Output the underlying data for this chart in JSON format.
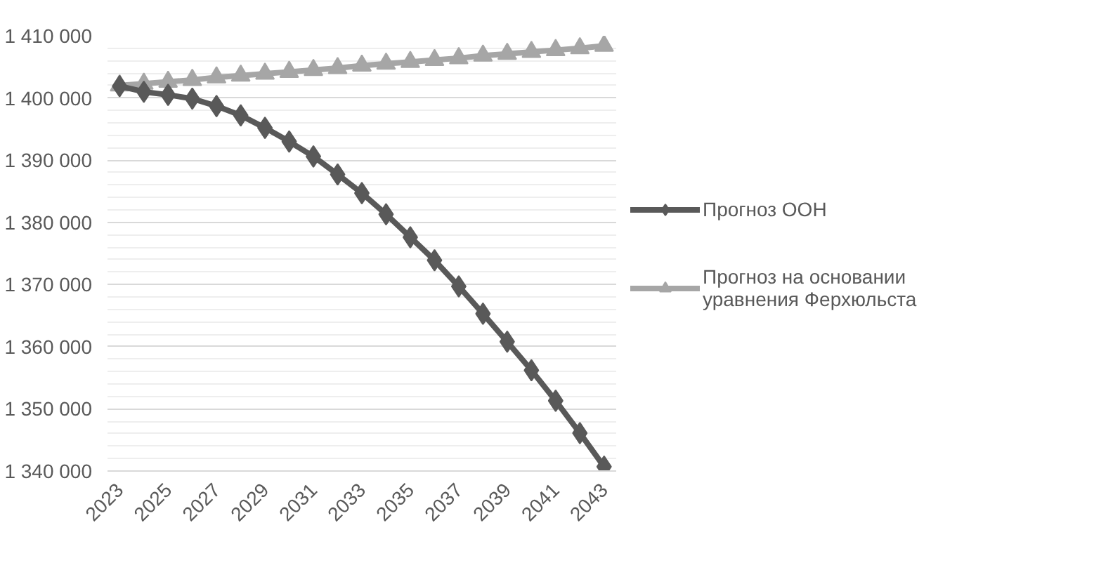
{
  "chart_data": {
    "type": "line",
    "categories": [
      "2023",
      null,
      "2025",
      null,
      "2027",
      null,
      "2029",
      null,
      "2031",
      null,
      "2033",
      null,
      "2035",
      null,
      "2037",
      null,
      "2039",
      null,
      "2041",
      null,
      "2043"
    ],
    "series": [
      {
        "name": "Прогноз ООН",
        "color": "#595959",
        "marker": "diamond",
        "values": [
          1401900,
          1401000,
          1400500,
          1399900,
          1398700,
          1397200,
          1395200,
          1393000,
          1390600,
          1387700,
          1384700,
          1381300,
          1377600,
          1373900,
          1369700,
          1365300,
          1360800,
          1356200,
          1351300,
          1346100,
          1340700
        ]
      },
      {
        "name": "Прогноз на основании уравнения Ферхюльста",
        "color": "#a6a6a6",
        "marker": "triangle",
        "values": [
          1402000,
          1402300,
          1402600,
          1402900,
          1403300,
          1403600,
          1403900,
          1404200,
          1404500,
          1404800,
          1405200,
          1405500,
          1405800,
          1406100,
          1406400,
          1406800,
          1407100,
          1407400,
          1407700,
          1408000,
          1408400
        ]
      }
    ],
    "ylim": [
      1340000,
      1410000
    ],
    "yticks": [
      {
        "value": 1340000,
        "label": "1 340 000"
      },
      {
        "value": 1350000,
        "label": "1 350 000"
      },
      {
        "value": 1360000,
        "label": "1 360 000"
      },
      {
        "value": 1370000,
        "label": "1 370 000"
      },
      {
        "value": 1380000,
        "label": "1 380 000"
      },
      {
        "value": 1390000,
        "label": "1 390 000"
      },
      {
        "value": 1400000,
        "label": "1 400 000"
      },
      {
        "value": 1410000,
        "label": "1 410 000"
      }
    ],
    "grid": "y",
    "legend": "right",
    "line_style": "solid"
  }
}
